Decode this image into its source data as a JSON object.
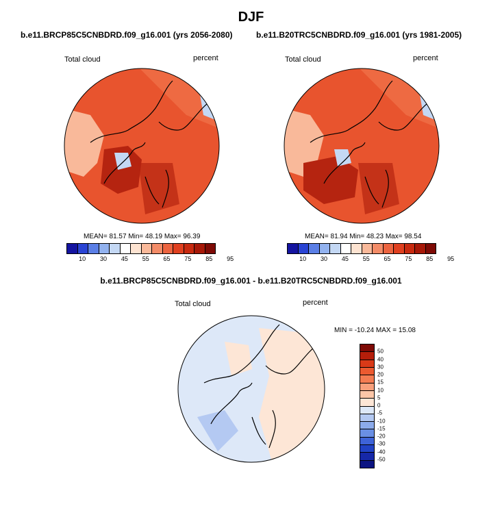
{
  "title": "DJF",
  "panels": [
    {
      "case": "b.e11.BRCP85C5CNBDRD.f09_g16.001 (yrs 2056-2080)",
      "variable": "Total cloud",
      "units": "percent",
      "stats": "MEAN=  81.57  Min=  48.19  Max=  96.39"
    },
    {
      "case": "b.e11.B20TRC5CNBDRD.f09_g16.001 (yrs 1981-2005)",
      "variable": "Total cloud",
      "units": "percent",
      "stats": "MEAN=  81.94  Min=  48.23  Max=  98.54"
    }
  ],
  "diff_panel": {
    "case": "b.e11.BRCP85C5CNBDRD.f09_g16.001 - b.e11.B20TRC5CNBDRD.f09_g16.001",
    "variable": "Total cloud",
    "units": "percent",
    "stats": "MIN = -10.24 MAX =  15.08"
  },
  "colorbar": {
    "labels": [
      "10",
      "30",
      "45",
      "55",
      "65",
      "75",
      "85",
      "95"
    ],
    "colors": [
      "#1414a0",
      "#2a44d4",
      "#5b7fe6",
      "#92b2ef",
      "#c4d8f4",
      "#ffffff",
      "#fde3d1",
      "#f9b99a",
      "#f38c68",
      "#ec6440",
      "#e04020",
      "#c82a10",
      "#a71808",
      "#7e0a05"
    ]
  },
  "diff_colorbar": {
    "labels": [
      "50",
      "40",
      "30",
      "20",
      "15",
      "10",
      "5",
      "0",
      "-5",
      "-10",
      "-15",
      "-20",
      "-30",
      "-40",
      "-50"
    ],
    "colors": [
      "#7e0a05",
      "#b51e0a",
      "#d93a18",
      "#ec5a30",
      "#f47c52",
      "#f8a07c",
      "#fcc6a8",
      "#fde6d6",
      "#dde8f8",
      "#b4c9f2",
      "#8cabeb",
      "#6a8fe4",
      "#3e63d8",
      "#2142c5",
      "#1628a8",
      "#0c1482"
    ]
  },
  "map_colors": {
    "ocean_high": "#e8542e",
    "high_alt": "#ee6a42",
    "low_region": "#f9b99a",
    "very_high": "#b52410",
    "min_region": "#c4d8f4",
    "diff_pos": "#fde6d6",
    "diff_neg": "#dde8f8",
    "diff_neg2": "#b4c9f2",
    "coast": "#000000"
  }
}
